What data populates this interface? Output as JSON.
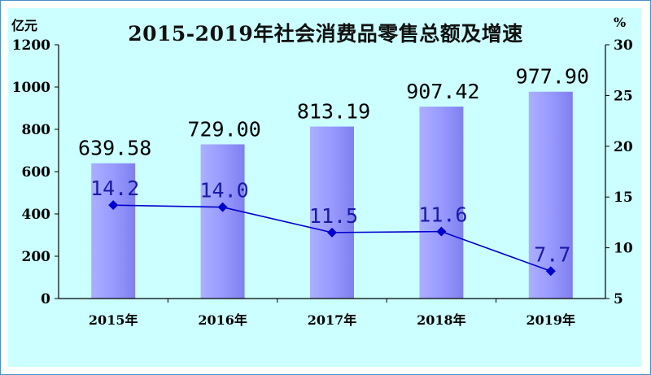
{
  "chart_data": {
    "type": "bar",
    "title": "2015-2019年社会消费品零售总额及增速",
    "y_left_unit": "亿元",
    "y_right_unit": "%",
    "categories": [
      "2015年",
      "2016年",
      "2017年",
      "2018年",
      "2019年"
    ],
    "series": [
      {
        "type": "bar",
        "axis": "left",
        "values": [
          639.58,
          729.0,
          813.19,
          907.42,
          977.9
        ],
        "labels": [
          "639.58",
          "729.00",
          "813.19",
          "907.42",
          "977.90"
        ],
        "color": "#9999ff"
      },
      {
        "type": "line",
        "axis": "right",
        "values": [
          14.2,
          14.0,
          11.5,
          11.6,
          7.7
        ],
        "labels": [
          "14.2",
          "14.0",
          "11.5",
          "11.6",
          "7.7"
        ],
        "color": "#0000cc"
      }
    ],
    "y_left": {
      "ylim": [
        0,
        1200
      ],
      "ticks": [
        "0",
        "200",
        "400",
        "600",
        "800",
        "1000",
        "1200"
      ]
    },
    "y_right": {
      "ylim": [
        5,
        30
      ],
      "ticks": [
        "5",
        "10",
        "15",
        "20",
        "25",
        "30"
      ]
    },
    "grid": false,
    "legend": "none",
    "background_color": "#ccffff"
  }
}
